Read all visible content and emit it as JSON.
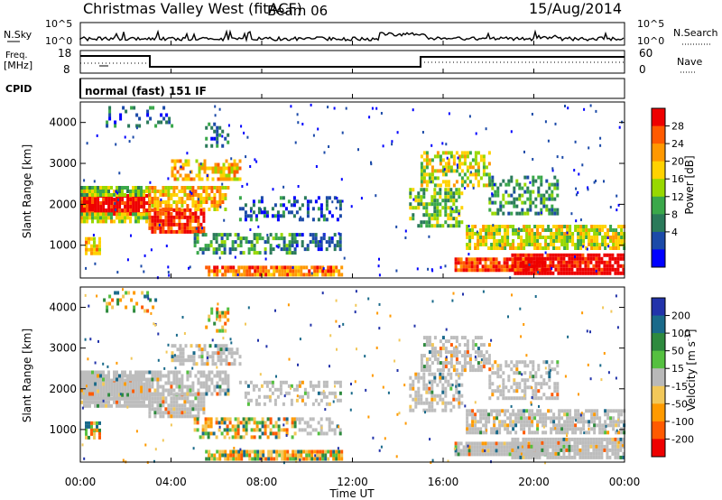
{
  "header": {
    "title": "Christmas Valley West (fitACF)",
    "beam": "Beam 06",
    "date": "15/Aug/2014"
  },
  "noise_panel": {
    "left_label": "N.Sky",
    "right_label": "N.Search",
    "left_ticks": [
      "10^5",
      "10^0"
    ],
    "right_ticks": [
      "10^5",
      "10^0"
    ]
  },
  "freq_panel": {
    "left_label_line1": "Freq.",
    "left_label_line2": "[MHz]",
    "right_label": "Nave",
    "left_ticks": [
      "18",
      "8"
    ],
    "right_ticks": [
      "60",
      "0"
    ]
  },
  "cpid_panel": {
    "label": "CPID",
    "mode": "normal (fast) 151 IF"
  },
  "colors": {
    "frame": "#000000",
    "ground_scatter": "#bdbdbd"
  },
  "chart_data": [
    {
      "type": "heatmap",
      "name": "power",
      "ylabel": "Slant Range [km]",
      "xlabel": "",
      "x_ticks": [
        "00:00",
        "04:00",
        "08:00",
        "12:00",
        "16:00",
        "20:00",
        "00:00"
      ],
      "y_ticks": [
        "1000",
        "2000",
        "3000",
        "4000"
      ],
      "ylim": [
        200,
        4500
      ],
      "colorbar": {
        "label": "Power [dB]",
        "ticks": [
          "28",
          "24",
          "20",
          "16",
          "12",
          "8",
          "4"
        ],
        "levels": [
          "#ee0000",
          "#ff5a00",
          "#ff9800",
          "#ffd200",
          "#98d800",
          "#3aa84a",
          "#2a7a5a",
          "#1b4aa8",
          "#0000ff"
        ]
      }
    },
    {
      "type": "heatmap",
      "name": "velocity",
      "ylabel": "Slant Range [km]",
      "xlabel": "Time UT",
      "x_ticks": [
        "00:00",
        "04:00",
        "08:00",
        "12:00",
        "16:00",
        "20:00",
        "00:00"
      ],
      "y_ticks": [
        "1000",
        "2000",
        "3000",
        "4000"
      ],
      "ylim": [
        200,
        4500
      ],
      "colorbar": {
        "label": "Velocity [m s^-1]",
        "ticks": [
          "200",
          "100",
          "50",
          "15",
          "-15",
          "-50",
          "-100",
          "-200"
        ],
        "levels": [
          "#2233aa",
          "#1a6a8a",
          "#2e8a3e",
          "#55c040",
          "#b9b9b9",
          "#f2c85a",
          "#ff9a00",
          "#ff5a00",
          "#ee0000"
        ]
      }
    }
  ]
}
